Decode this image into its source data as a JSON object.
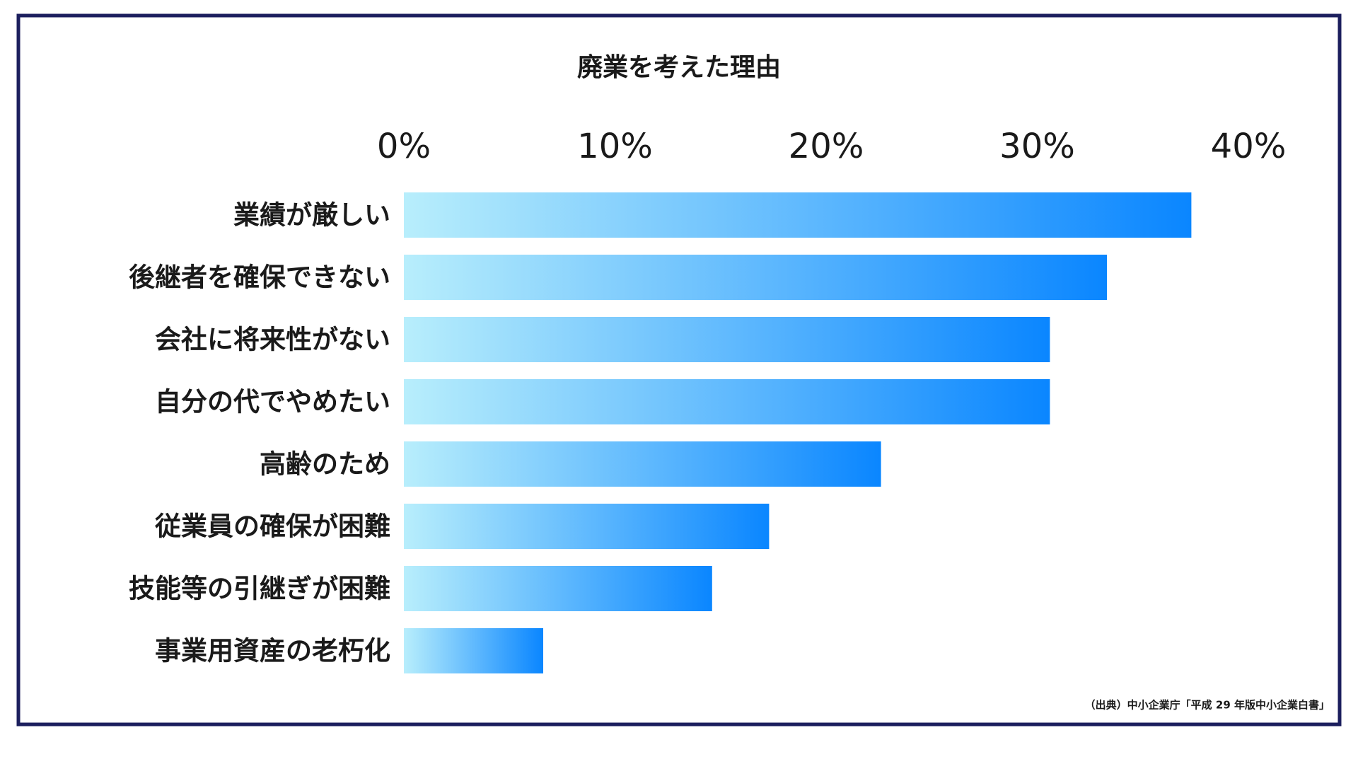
{
  "chart_data": {
    "type": "bar",
    "orientation": "horizontal",
    "title": "廃業を考えた理由",
    "categories": [
      "業績が厳しい",
      "後継者を確保できない",
      "会社に将来性がない",
      "自分の代でやめたい",
      "高齢のため",
      "従業員の確保が困難",
      "技能等の引継ぎが困難",
      "事業用資産の老朽化"
    ],
    "values": [
      37.3,
      33.3,
      30.6,
      30.6,
      22.6,
      17.3,
      14.6,
      6.6
    ],
    "gradient": [
      "#b8eefc",
      "#0a86ff"
    ],
    "xlim": [
      0,
      40
    ],
    "xticks": [
      {
        "value": 0,
        "label": "0%"
      },
      {
        "value": 10,
        "label": "10%"
      },
      {
        "value": 20,
        "label": "20%"
      },
      {
        "value": 30,
        "label": "30%"
      },
      {
        "value": 40,
        "label": "40%"
      }
    ],
    "grid": false,
    "source": "（出典）中小企業庁「平成 29 年版中小企業白書」"
  }
}
